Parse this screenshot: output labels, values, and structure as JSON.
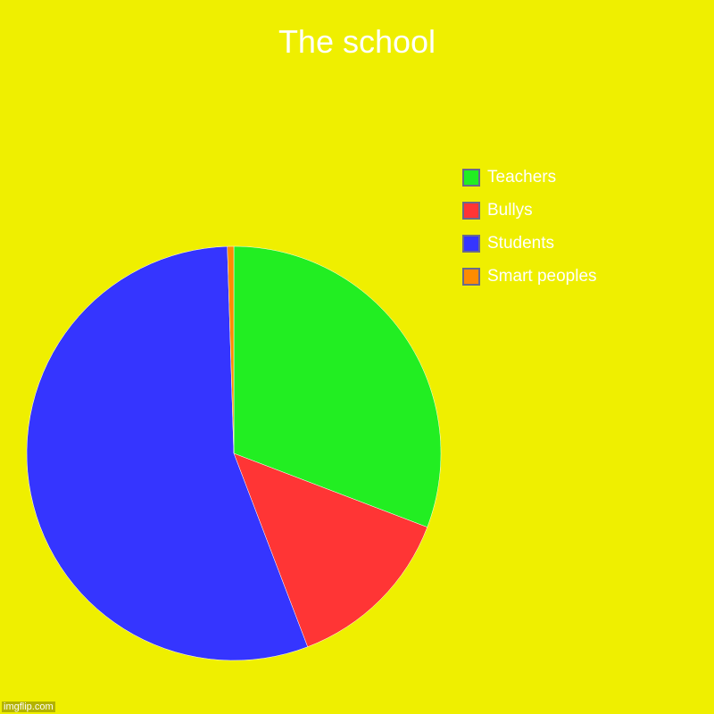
{
  "chart_data": {
    "type": "pie",
    "title": "The school",
    "categories": [
      "Teachers",
      "Bullys",
      "Students",
      "Smart peoples"
    ],
    "values": [
      30.8,
      13.4,
      55.3,
      0.5
    ],
    "colors": [
      "#22ee22",
      "#ff3535",
      "#3535ff",
      "#ff8c00"
    ],
    "start_angle": "top, clockwise",
    "legend_position": "right"
  },
  "background": "#efef00",
  "watermark": "imgflip.com"
}
